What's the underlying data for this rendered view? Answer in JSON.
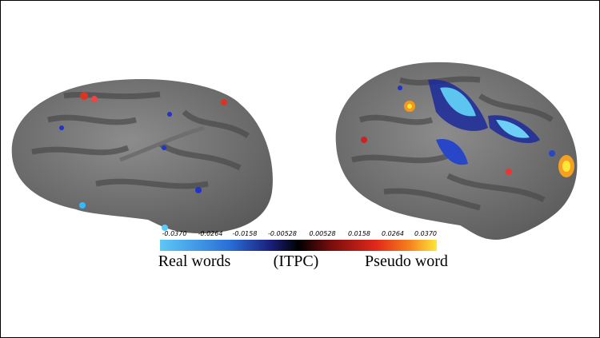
{
  "colorbar": {
    "ticks": [
      "-0.0370",
      "-0.0264",
      "-0.0158",
      "-0.00528",
      "0.00528",
      "0.0158",
      "0.0264",
      "0.0370"
    ],
    "left_label": "Real words",
    "center_label": "(ITPC)",
    "right_label": "Pseudo word"
  }
}
